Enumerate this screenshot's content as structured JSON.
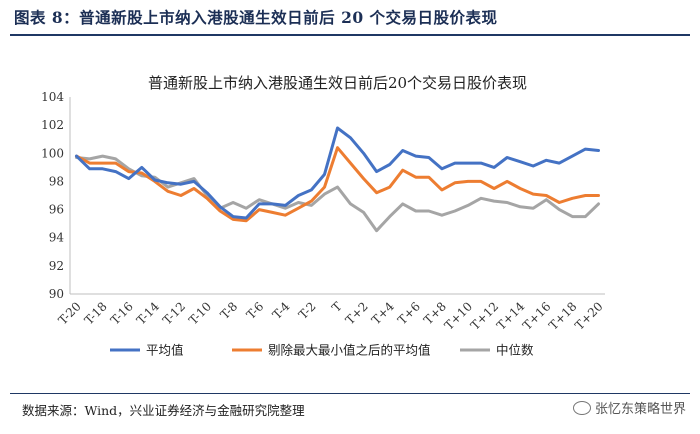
{
  "figure_title": "图表 8：普通新股上市纳入港股通生效日前后 20 个交易日股价表现",
  "source_note": "数据来源：Wind，兴业证券经济与金融研究院整理",
  "watermark": "张忆东策略世界",
  "chart_data": {
    "type": "line",
    "title": "普通新股上市纳入港股通生效日前后20个交易日股价表现",
    "xlabel": "",
    "ylabel": "",
    "ylim": [
      90,
      104
    ],
    "yticks": [
      90,
      92,
      94,
      96,
      98,
      100,
      102,
      104
    ],
    "grid": false,
    "legend_position": "bottom",
    "x": [
      "T-20",
      "T-19",
      "T-18",
      "T-17",
      "T-16",
      "T-15",
      "T-14",
      "T-13",
      "T-12",
      "T-11",
      "T-10",
      "T-9",
      "T-8",
      "T-7",
      "T-6",
      "T-5",
      "T-4",
      "T-3",
      "T-2",
      "T-1",
      "T",
      "T+1",
      "T+2",
      "T+3",
      "T+4",
      "T+5",
      "T+6",
      "T+7",
      "T+8",
      "T+9",
      "T+10",
      "T+11",
      "T+12",
      "T+13",
      "T+14",
      "T+15",
      "T+16",
      "T+17",
      "T+18",
      "T+19",
      "T+20"
    ],
    "xtick_labels": [
      "T-20",
      "T-18",
      "T-16",
      "T-14",
      "T-12",
      "T-10",
      "T-8",
      "T-6",
      "T-4",
      "T-2",
      "T",
      "T+2",
      "T+4",
      "T+6",
      "T+8",
      "T+10",
      "T+12",
      "T+14",
      "T+16",
      "T+18",
      "T+20"
    ],
    "series": [
      {
        "name": "平均值",
        "color": "#4472c4",
        "values": [
          99.8,
          98.9,
          98.9,
          98.7,
          98.2,
          99.0,
          98.1,
          97.9,
          97.8,
          98.0,
          97.2,
          96.2,
          95.5,
          95.4,
          96.4,
          96.4,
          96.3,
          97.0,
          97.4,
          98.5,
          101.8,
          101.1,
          100.0,
          98.7,
          99.2,
          100.2,
          99.8,
          99.7,
          98.9,
          99.3,
          99.3,
          99.3,
          99.0,
          99.7,
          99.4,
          99.1,
          99.5,
          99.3,
          99.8,
          100.3,
          100.2
        ]
      },
      {
        "name": "剔除最大最小值之后的平均值",
        "color": "#ed7d31",
        "values": [
          99.8,
          99.3,
          99.3,
          99.3,
          98.7,
          98.6,
          98.0,
          97.3,
          97.0,
          97.5,
          96.8,
          95.9,
          95.3,
          95.2,
          96.0,
          95.8,
          95.6,
          96.1,
          96.6,
          97.6,
          100.4,
          99.3,
          98.2,
          97.2,
          97.6,
          98.8,
          98.3,
          98.3,
          97.4,
          97.9,
          98.0,
          98.0,
          97.5,
          98.0,
          97.5,
          97.1,
          97.0,
          96.5,
          96.8,
          97.0,
          97.0
        ]
      },
      {
        "name": "中位数",
        "color": "#a5a5a5",
        "values": [
          99.7,
          99.6,
          99.8,
          99.6,
          98.9,
          98.4,
          98.3,
          97.6,
          97.9,
          98.2,
          97.0,
          96.1,
          96.5,
          96.1,
          96.7,
          96.4,
          96.1,
          96.5,
          96.3,
          97.1,
          97.6,
          96.4,
          95.8,
          94.5,
          95.5,
          96.4,
          95.9,
          95.9,
          95.6,
          95.9,
          96.3,
          96.8,
          96.6,
          96.5,
          96.2,
          96.1,
          96.7,
          96.0,
          95.5,
          95.5,
          96.4
        ]
      }
    ]
  }
}
